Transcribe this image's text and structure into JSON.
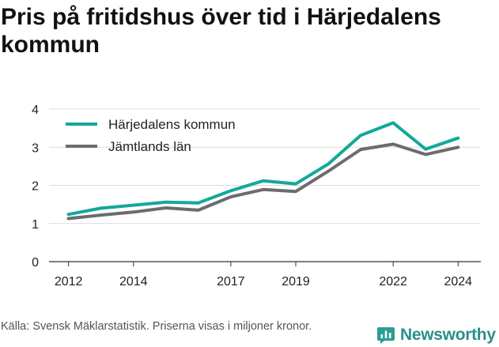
{
  "title": "Pris på fritidshus över tid i Härjedalens kommun",
  "source_note": "Källa: Svensk Mäklarstatistik. Priserna visas i miljoner kronor.",
  "brand": {
    "name": "Newsworthy",
    "icon": "newsworthy-logo-icon",
    "color": "#2a9d94"
  },
  "chart_data": {
    "type": "line",
    "xlabel": "",
    "ylabel": "",
    "xlim": [
      2011.4,
      2024.7
    ],
    "ylim": [
      0,
      4
    ],
    "yticks": [
      0,
      1,
      2,
      3,
      4
    ],
    "xticks": [
      2012,
      2014,
      2017,
      2019,
      2022,
      2024
    ],
    "grid": "horizontal",
    "legend": "top-left",
    "x": [
      2012,
      2013,
      2014,
      2015,
      2016,
      2017,
      2018,
      2019,
      2020,
      2021,
      2022,
      2023,
      2024
    ],
    "series": [
      {
        "name": "Härjedalens kommun",
        "color": "#14a89b",
        "values": [
          1.24,
          1.4,
          1.48,
          1.56,
          1.54,
          1.86,
          2.12,
          2.04,
          2.56,
          3.31,
          3.64,
          2.95,
          3.24
        ]
      },
      {
        "name": "Jämtlands län",
        "color": "#6d6b70",
        "values": [
          1.13,
          1.22,
          1.3,
          1.41,
          1.35,
          1.7,
          1.89,
          1.84,
          2.37,
          2.94,
          3.08,
          2.81,
          3.0
        ]
      }
    ]
  }
}
